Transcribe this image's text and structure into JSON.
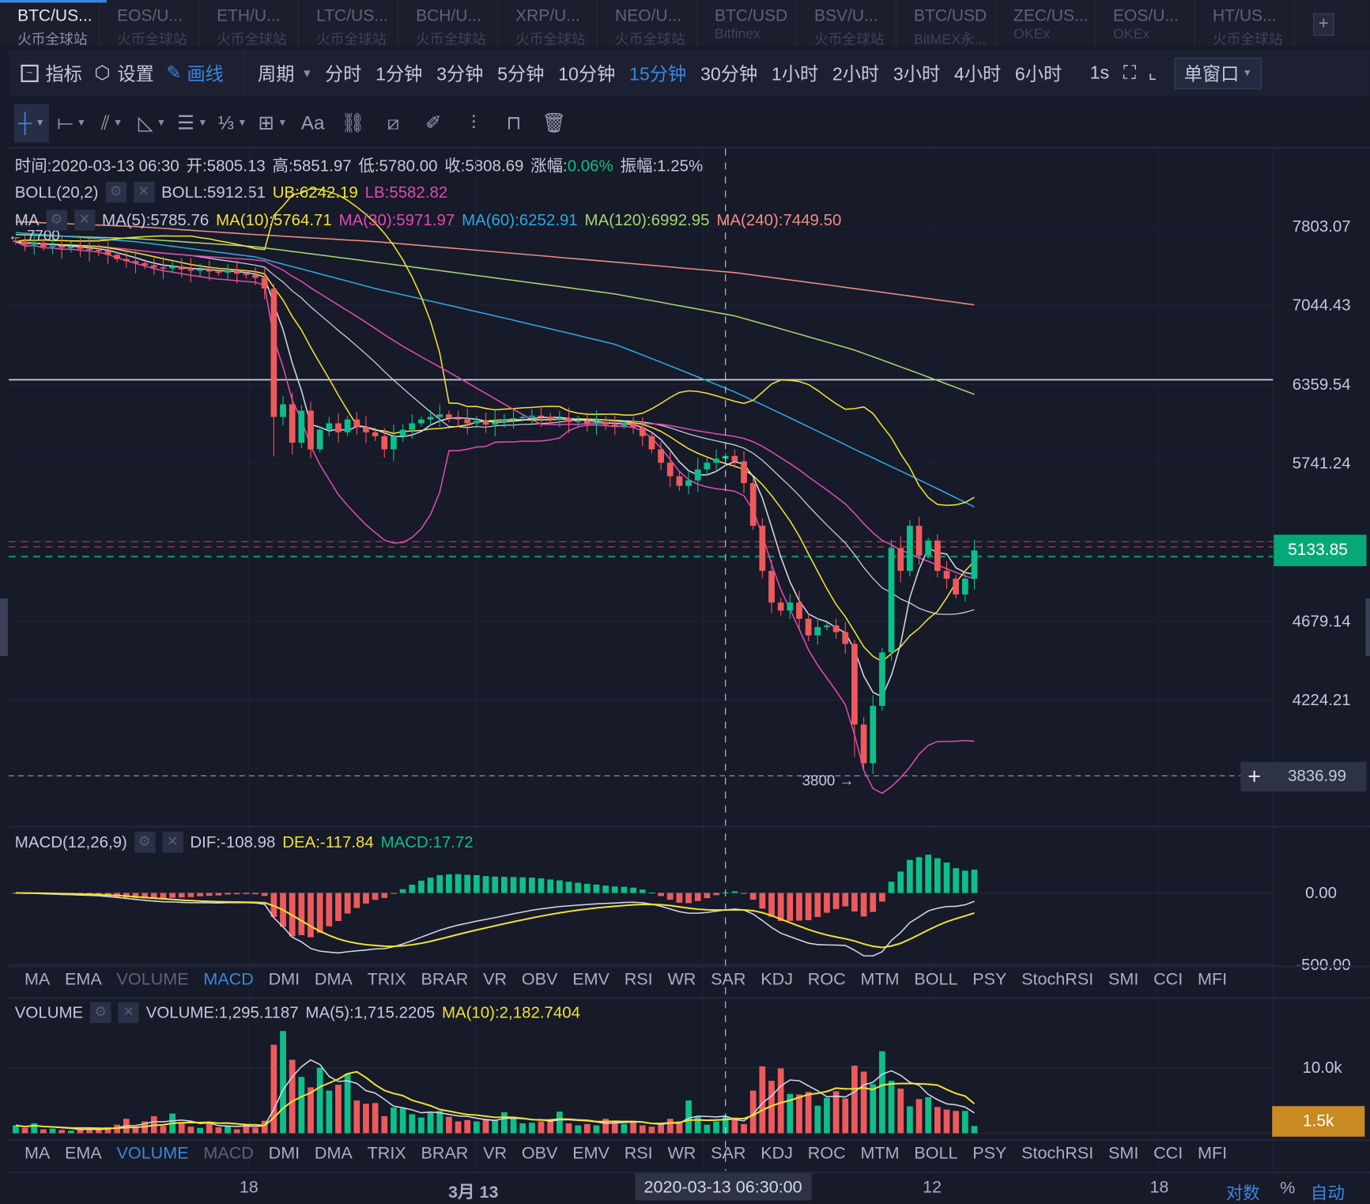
{
  "tabs": [
    {
      "symbol": "BTC/US...",
      "exchange": "火币全球站",
      "active": true
    },
    {
      "symbol": "EOS/U...",
      "exchange": "火币全球站"
    },
    {
      "symbol": "ETH/U...",
      "exchange": "火币全球站"
    },
    {
      "symbol": "LTC/US...",
      "exchange": "火币全球站"
    },
    {
      "symbol": "BCH/U...",
      "exchange": "火币全球站"
    },
    {
      "symbol": "XRP/U...",
      "exchange": "火币全球站"
    },
    {
      "symbol": "NEO/U...",
      "exchange": "火币全球站"
    },
    {
      "symbol": "BTC/USD",
      "exchange": "Bitfinex"
    },
    {
      "symbol": "BSV/U...",
      "exchange": "火币全球站"
    },
    {
      "symbol": "BTC/USD",
      "exchange": "BitMEX永..."
    },
    {
      "symbol": "ZEC/US...",
      "exchange": "OKEx"
    },
    {
      "symbol": "EOS/U...",
      "exchange": "OKEx"
    },
    {
      "symbol": "HT/US...",
      "exchange": "火币全球站"
    }
  ],
  "tab_add": "+",
  "toolbar": {
    "indicators": "指标",
    "settings": "设置",
    "draw": "画线",
    "period": "周期",
    "periods": [
      "分时",
      "1分钟",
      "3分钟",
      "5分钟",
      "10分钟",
      "15分钟",
      "30分钟",
      "1小时",
      "2小时",
      "3小时",
      "4小时",
      "6小时"
    ],
    "active_period": "15分钟",
    "refresh": "1s",
    "window": "单窗口"
  },
  "draw_tools": [
    "crosshair-icon",
    "horizontal-segment-icon",
    "trend-line-icon",
    "angle-icon",
    "parallel-lines-icon",
    "fibonacci-icon",
    "measure-icon",
    "text-icon",
    "pattern-icon",
    "ruler-icon",
    "brush-icon",
    "candle-pattern-icon",
    "lock-icon",
    "trash-icon"
  ],
  "draw_text": "Aa",
  "ohlc": {
    "time_label": "时间:",
    "time": "2020-03-13 06:30",
    "open_label": "开:",
    "open": "5805.13",
    "high_label": "高:",
    "high": "5851.97",
    "low_label": "低:",
    "low": "5780.00",
    "close_label": "收:",
    "close": "5808.69",
    "chg_label": "涨幅:",
    "chg": "0.06%",
    "amp_label": "振幅:",
    "amp": "1.25%"
  },
  "boll": {
    "name": "BOLL(20,2)",
    "mid": "BOLL:5912.51",
    "ub": "UB:6242.19",
    "lb": "LB:5582.82"
  },
  "ma": {
    "name": "MA",
    "ma5": "MA(5):5785.76",
    "ma10": "MA(10):5764.71",
    "ma30": "MA(30):5971.97",
    "ma60": "MA(60):6252.91",
    "ma120": "MA(120):6992.95",
    "ma240": "MA(240):7449.50"
  },
  "price_axis": [
    "7803.07",
    "7044.43",
    "6359.54",
    "5741.24",
    "4679.14",
    "4224.21"
  ],
  "last_price": "5133.85",
  "cursor_price": "3836.99",
  "cursor_plus": "+",
  "annotations": {
    "high_mark": "← 7700",
    "low_mark": "3800 →"
  },
  "macd": {
    "name": "MACD(12,26,9)",
    "dif": "DIF:-108.98",
    "dea": "DEA:-117.84",
    "hist": "MACD:17.72",
    "axis": [
      "0.00",
      "-500.00"
    ]
  },
  "volume": {
    "name": "VOLUME",
    "vol": "VOLUME:1,295.1187",
    "ma5": "MA(5):1,715.2205",
    "ma10": "MA(10):2,182.7404",
    "axis": "10.0k",
    "tag": "1.5k"
  },
  "indicator_tabs": [
    "MA",
    "EMA",
    "VOLUME",
    "MACD",
    "DMI",
    "DMA",
    "TRIX",
    "BRAR",
    "VR",
    "OBV",
    "EMV",
    "RSI",
    "WR",
    "SAR",
    "KDJ",
    "ROC",
    "MTM",
    "BOLL",
    "PSY",
    "StochRSI",
    "SMI",
    "CCI",
    "MFI"
  ],
  "time_axis": {
    "labels": [
      "18",
      "3月 13",
      "12",
      "18"
    ],
    "cursor": "2020-03-13 06:30:00",
    "log": "对数",
    "percent": "%",
    "auto": "自动"
  },
  "colors": {
    "up": "#0dbf89",
    "down": "#ee5a5c",
    "ma5": "#d4d7e6",
    "ma10": "#f3e330",
    "ma30": "#e04bb4",
    "ma60": "#2ea8e2",
    "ma120": "#a6d571",
    "ma240": "#f08c84",
    "accent": "#3a87e0"
  },
  "chart_data": {
    "type": "candlestick",
    "scale": "log",
    "price_range": [
      3836.99,
      7803.07
    ],
    "closes": [
      7650,
      7620,
      7640,
      7600,
      7610,
      7590,
      7600,
      7580,
      7570,
      7560,
      7520,
      7480,
      7460,
      7440,
      7420,
      7400,
      7390,
      7410,
      7380,
      7370,
      7380,
      7360,
      7350,
      7370,
      7340,
      7330,
      7300,
      7200,
      6100,
      6200,
      5900,
      6150,
      5850,
      6000,
      6050,
      5980,
      6080,
      6020,
      5980,
      5950,
      5850,
      5950,
      6000,
      6050,
      6080,
      6100,
      6120,
      6090,
      6080,
      6050,
      6070,
      6040,
      6060,
      6080,
      6090,
      6100,
      6110,
      6100,
      6080,
      6090,
      6060,
      6070,
      6050,
      6060,
      6040,
      6030,
      6050,
      6020,
      5950,
      5850,
      5750,
      5650,
      5580,
      5620,
      5700,
      5750,
      5780,
      5800,
      5760,
      5600,
      5300,
      5000,
      4800,
      4750,
      4800,
      4700,
      4600,
      4650,
      4660,
      4620,
      4550,
      4100,
      3900,
      4200,
      4500,
      5150,
      5000,
      5300,
      5100,
      5200,
      5000,
      4950,
      4850,
      4950,
      5134
    ],
    "volumes_k": [
      1.2,
      0.8,
      1.5,
      0.6,
      0.7,
      0.5,
      0.4,
      0.6,
      0.8,
      0.5,
      0.9,
      1.3,
      2.2,
      1.0,
      1.8,
      2.6,
      1.1,
      3.0,
      1.5,
      1.0,
      0.8,
      1.6,
      0.9,
      1.2,
      0.6,
      1.4,
      0.8,
      1.9,
      13.5,
      15.6,
      11.2,
      8.6,
      7.0,
      10.0,
      6.5,
      7.4,
      9.1,
      5.0,
      4.5,
      4.6,
      2.6,
      3.9,
      3.8,
      2.9,
      2.4,
      3.1,
      3.4,
      2.5,
      1.8,
      2.0,
      1.8,
      2.2,
      2.0,
      3.2,
      2.2,
      1.5,
      1.6,
      1.8,
      2.0,
      3.3,
      1.5,
      1.2,
      1.4,
      1.2,
      2.2,
      1.9,
      1.4,
      1.8,
      1.2,
      1.0,
      1.5,
      2.2,
      1.8,
      5.0,
      2.5,
      1.3,
      1.8,
      2.5,
      2.4,
      1.4,
      6.5,
      10.2,
      8.0,
      9.9,
      6.0,
      5.9,
      6.3,
      4.2,
      5.4,
      6.4,
      5.3,
      10.3,
      9.4,
      7.5,
      12.5,
      8.0,
      6.8,
      4.1,
      5.2,
      5.5,
      4.0,
      3.6,
      3.4,
      3.4,
      1.1
    ],
    "ma_long_samples_at": [
      0,
      13,
      26,
      39,
      52,
      65,
      78,
      91,
      104
    ],
    "ma60": [
      7740,
      7650,
      7500,
      7200,
      6950,
      6700,
      6300,
      5850,
      5430
    ],
    "ma120": [
      7720,
      7680,
      7600,
      7450,
      7300,
      7150,
      6950,
      6650,
      6280
    ],
    "ma240": [
      7850,
      7800,
      7720,
      7650,
      7550,
      7450,
      7350,
      7200,
      7050
    ],
    "drawn_line_price": 6400,
    "cursor_index": 77
  }
}
